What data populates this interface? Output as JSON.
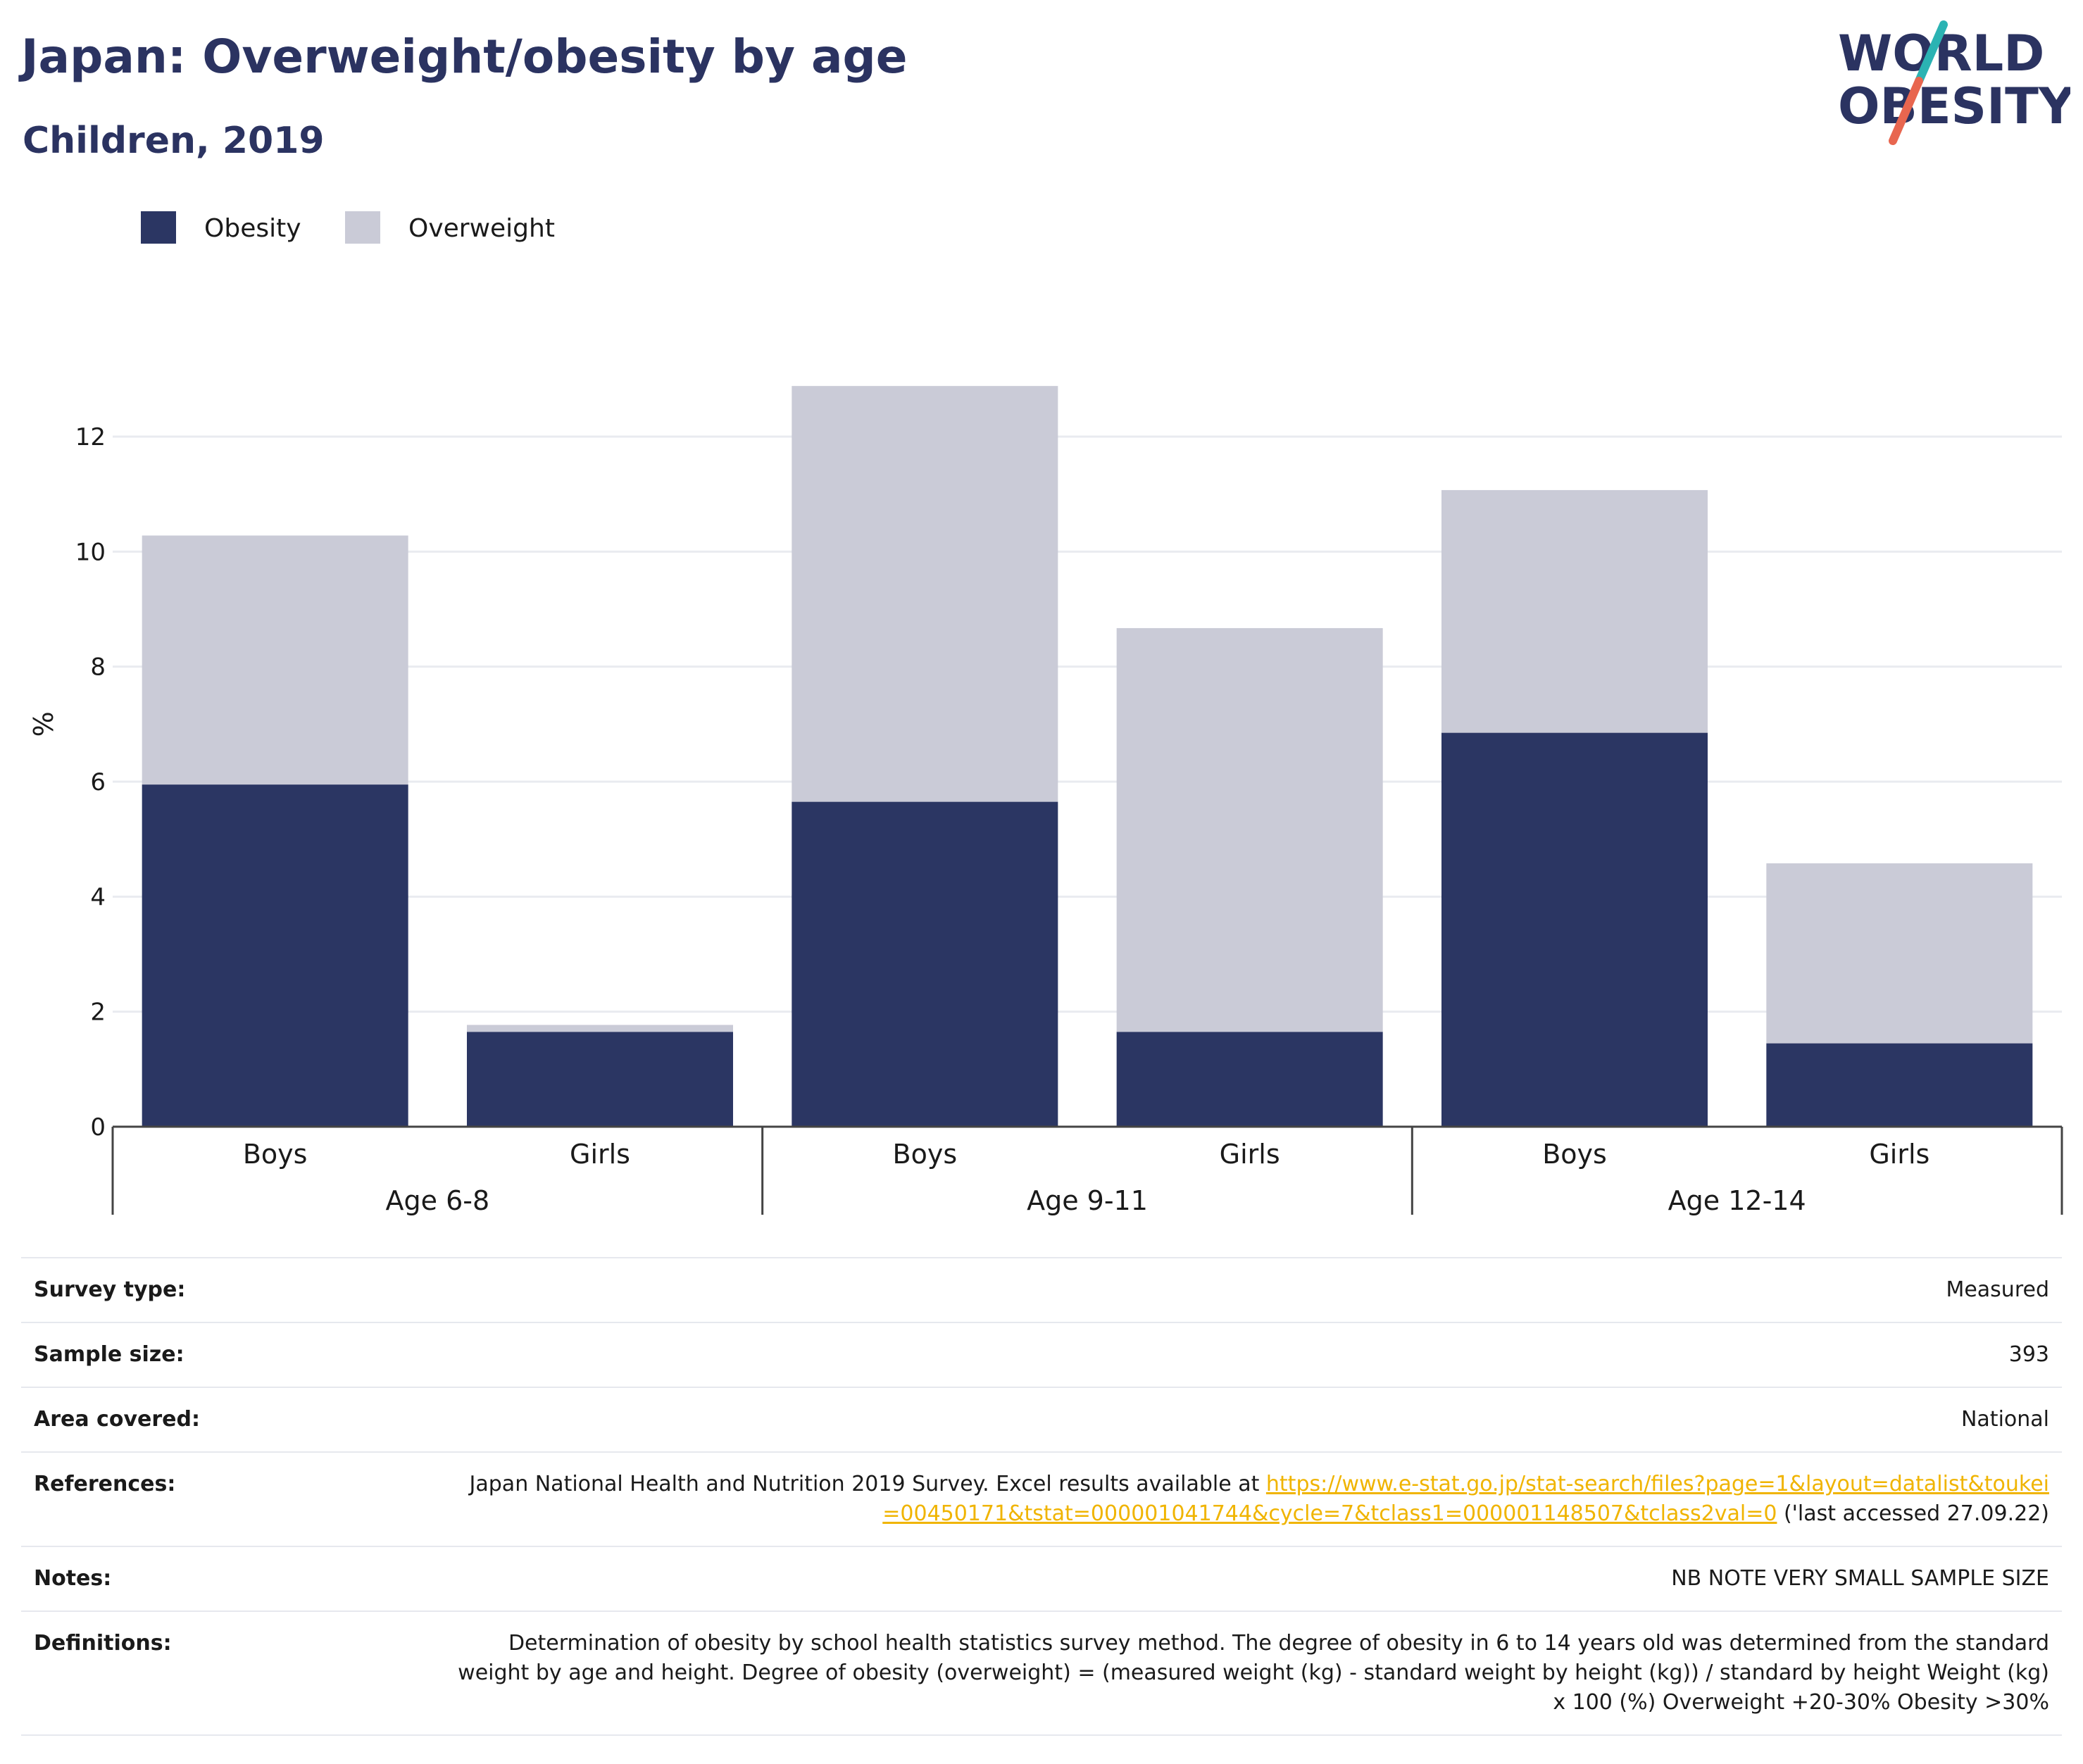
{
  "header": {
    "title": "Japan: Overweight/obesity by age",
    "subtitle": "Children, 2019",
    "logo": {
      "line1": "WORLD",
      "line2": "OBESITY",
      "accent_color": "#2bb3b3",
      "accent_color2": "#e8664f",
      "text_color": "#2b3361"
    }
  },
  "chart_data": {
    "type": "bar",
    "stacked": true,
    "ylabel": "%",
    "ylim": [
      0,
      13.5
    ],
    "yticks": [
      0,
      2,
      4,
      6,
      8,
      10,
      12
    ],
    "grid": true,
    "legend_position": "top-left",
    "groups": [
      {
        "label": "Age 6-8",
        "categories": [
          "Boys",
          "Girls"
        ]
      },
      {
        "label": "Age 9-11",
        "categories": [
          "Boys",
          "Girls"
        ]
      },
      {
        "label": "Age 12-14",
        "categories": [
          "Boys",
          "Girls"
        ]
      }
    ],
    "series": [
      {
        "name": "Obesity",
        "color": "#2b3663",
        "values": [
          5.95,
          1.65,
          5.65,
          1.65,
          6.85,
          1.45
        ]
      },
      {
        "name": "Overweight",
        "color": "#cacbd7",
        "values": [
          4.33,
          0.12,
          7.23,
          7.02,
          4.22,
          3.13
        ]
      }
    ]
  },
  "info": {
    "rows": [
      {
        "label": "Survey type:",
        "value": "Measured"
      },
      {
        "label": "Sample size:",
        "value": "393"
      },
      {
        "label": "Area covered:",
        "value": "National"
      },
      {
        "label": "References:",
        "value_pre": "Japan National Health and Nutrition 2019 Survey. Excel results available at ",
        "link": "https://www.e-stat.go.jp/stat-search/files?page=1&layout=datalist&toukei=00450171&tstat=000001041744&cycle=7&tclass1=000001148507&tclass2val=0",
        "value_post": " ('last accessed 27.09.22)"
      },
      {
        "label": "Notes:",
        "value": "NB NOTE VERY SMALL SAMPLE SIZE"
      },
      {
        "label": "Definitions:",
        "value": "Determination of obesity by school health statistics survey method. The degree of obesity in 6 to 14 years old was determined from the standard weight by age and height. Degree of obesity (overweight) = (measured weight (kg) - standard weight by height (kg)) / standard by height Weight (kg) x 100 (%) Overweight +20-30% Obesity >30%"
      }
    ]
  }
}
